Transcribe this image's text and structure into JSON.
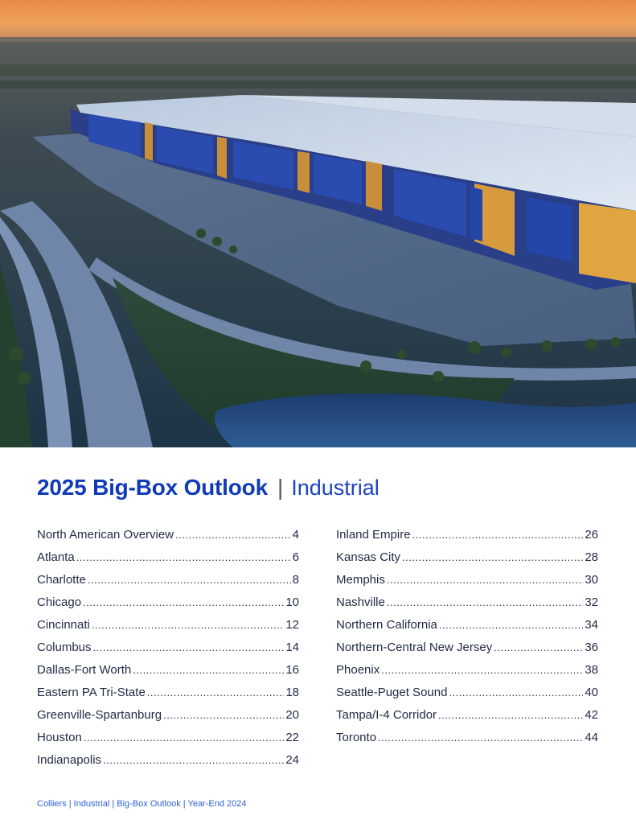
{
  "hero": {
    "image": "aerial-warehouse-photo"
  },
  "title": {
    "main": "2025 Big-Box Outlook",
    "separator": "|",
    "sub": "Industrial"
  },
  "toc": {
    "left": [
      {
        "name": "North American Overview",
        "page": "4"
      },
      {
        "name": "Atlanta",
        "page": "6"
      },
      {
        "name": "Charlotte",
        "page": "8"
      },
      {
        "name": "Chicago",
        "page": "10"
      },
      {
        "name": "Cincinnati",
        "page": "12"
      },
      {
        "name": "Columbus",
        "page": "14"
      },
      {
        "name": "Dallas-Fort Worth",
        "page": "16"
      },
      {
        "name": "Eastern PA Tri-State",
        "page": "18"
      },
      {
        "name": "Greenville-Spartanburg",
        "page": "20"
      },
      {
        "name": "Houston",
        "page": "22"
      },
      {
        "name": "Indianapolis",
        "page": "24"
      }
    ],
    "right": [
      {
        "name": "Inland Empire",
        "page": "26"
      },
      {
        "name": "Kansas City",
        "page": "28"
      },
      {
        "name": "Memphis",
        "page": "30"
      },
      {
        "name": "Nashville",
        "page": "32"
      },
      {
        "name": "Northern California",
        "page": "34"
      },
      {
        "name": "Northern-Central New Jersey",
        "page": "36"
      },
      {
        "name": "Phoenix",
        "page": "38"
      },
      {
        "name": "Seattle-Puget Sound",
        "page": "40"
      },
      {
        "name": "Tampa/I-4 Corridor",
        "page": "42"
      },
      {
        "name": "Toronto",
        "page": "44"
      }
    ]
  },
  "footer": {
    "text": "Colliers | Industrial | Big-Box Outlook | Year-End 2024"
  },
  "colors": {
    "title": "#0f3bb8",
    "subtitle": "#1d43c2",
    "body_text": "#1f2a44",
    "footer": "#2d62d6"
  }
}
